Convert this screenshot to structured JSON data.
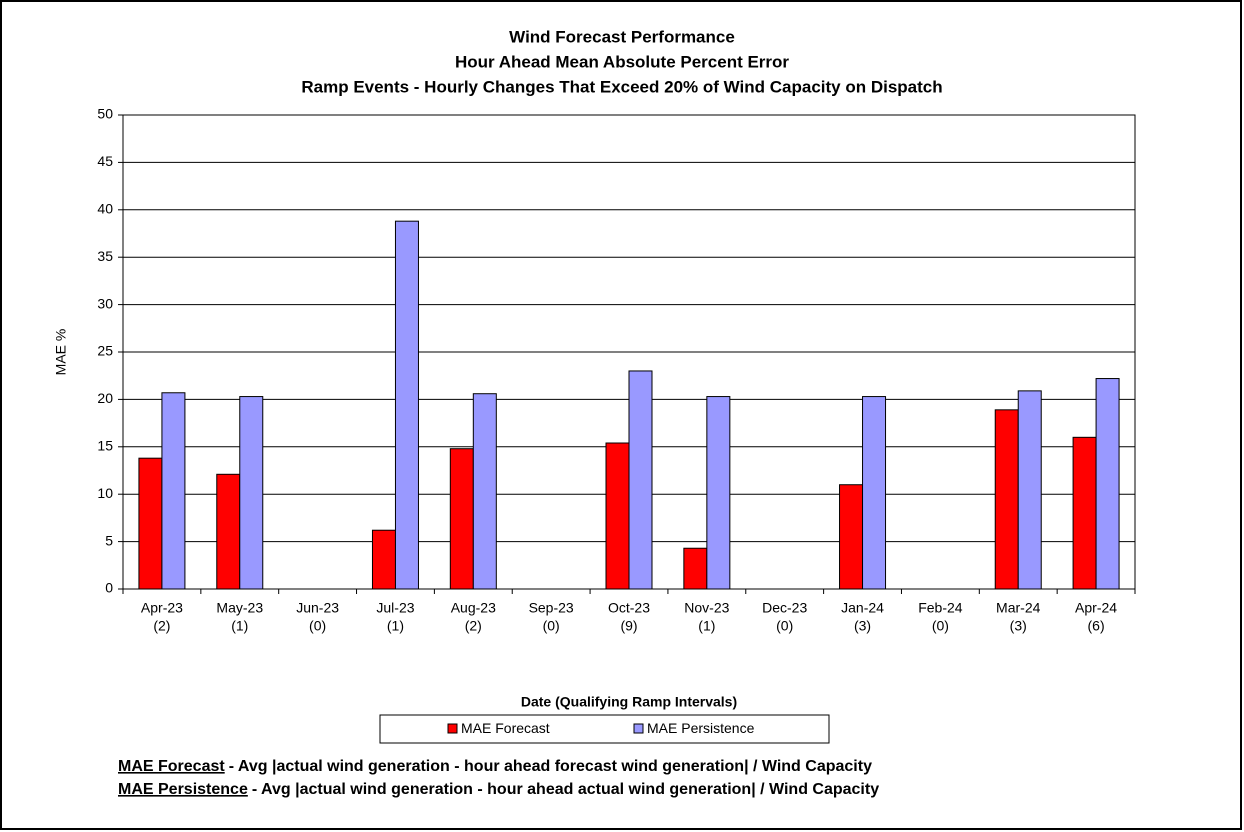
{
  "chart_data": {
    "type": "bar",
    "title": [
      "Wind Forecast Performance",
      "Hour Ahead Mean Absolute Percent Error",
      "Ramp Events - Hourly Changes That Exceed 20% of Wind Capacity on Dispatch"
    ],
    "y_label": "MAE %",
    "x_label": "Date (Qualifying Ramp Intervals)",
    "categories": [
      [
        "Apr-23",
        "(2)"
      ],
      [
        "May-23",
        "(1)"
      ],
      [
        "Jun-23",
        "(0)"
      ],
      [
        "Jul-23",
        "(1)"
      ],
      [
        "Aug-23",
        "(2)"
      ],
      [
        "Sep-23",
        "(0)"
      ],
      [
        "Oct-23",
        "(9)"
      ],
      [
        "Nov-23",
        "(1)"
      ],
      [
        "Dec-23",
        "(0)"
      ],
      [
        "Jan-24",
        "(3)"
      ],
      [
        "Feb-24",
        "(0)"
      ],
      [
        "Mar-24",
        "(3)"
      ],
      [
        "Apr-24",
        "(6)"
      ]
    ],
    "series": [
      {
        "name": "MAE Forecast",
        "color": "#ff0000",
        "values": [
          13.8,
          12.1,
          null,
          6.2,
          14.8,
          null,
          15.4,
          4.3,
          null,
          11.0,
          null,
          18.9,
          16.0
        ]
      },
      {
        "name": "MAE Persistence",
        "color": "#9999ff",
        "values": [
          20.7,
          20.3,
          null,
          38.8,
          20.6,
          null,
          23.0,
          20.3,
          null,
          20.3,
          null,
          20.9,
          22.2
        ]
      }
    ],
    "ylim": [
      0,
      50
    ],
    "yticks": [
      0,
      5,
      10,
      15,
      20,
      25,
      30,
      35,
      40,
      45,
      50
    ],
    "grid": true,
    "legend": "bottom",
    "footnotes": [
      {
        "term": "MAE Forecast",
        "text": "- Avg |actual wind generation - hour ahead forecast wind generation| / Wind Capacity"
      },
      {
        "term": "MAE Persistence",
        "text": "- Avg |actual wind generation - hour ahead actual wind generation| / Wind Capacity"
      }
    ]
  }
}
